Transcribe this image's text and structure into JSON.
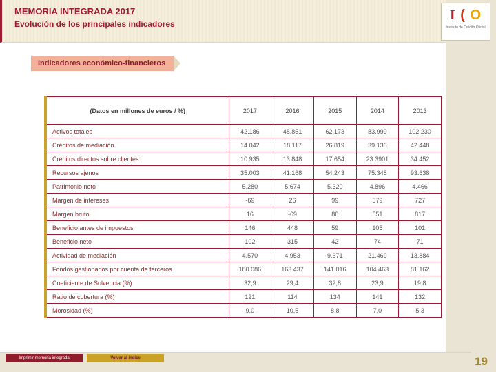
{
  "header": {
    "title": "MEMORIA INTEGRADA 2017",
    "subtitle": "Evolución de los principales indicadores"
  },
  "logo": {
    "glyphs": [
      "I",
      "(",
      "O"
    ],
    "caption": "Instituto de Crédito Oficial"
  },
  "section": {
    "title": "Indicadores económico-financieros"
  },
  "table": {
    "unit_label": "(Datos en millones de euros / %)",
    "years": [
      "2017",
      "2016",
      "2015",
      "2014",
      "2013"
    ],
    "rows": [
      {
        "label": "Activos totales",
        "values": [
          "42.186",
          "48.851",
          "62.173",
          "83.999",
          "102.230"
        ]
      },
      {
        "label": "Créditos de mediación",
        "values": [
          "14.042",
          "18.117",
          "26.819",
          "39.136",
          "42.448"
        ]
      },
      {
        "label": "Créditos directos sobre clientes",
        "values": [
          "10.935",
          "13.848",
          "17.654",
          "23.3901",
          "34.452"
        ]
      },
      {
        "label": "Recursos ajenos",
        "values": [
          "35.003",
          "41.168",
          "54.243",
          "75.348",
          "93.638"
        ]
      },
      {
        "label": "Patrimonio neto",
        "values": [
          "5.280",
          "5.674",
          "5.320",
          "4.896",
          "4.466"
        ]
      },
      {
        "label": "Margen de intereses",
        "values": [
          "-69",
          "26",
          "99",
          "579",
          "727"
        ]
      },
      {
        "label": "Margen bruto",
        "values": [
          "16",
          "-69",
          "86",
          "551",
          "817"
        ]
      },
      {
        "label": "Beneficio antes de impuestos",
        "values": [
          "146",
          "448",
          "59",
          "105",
          "101"
        ]
      },
      {
        "label": "Beneficio neto",
        "values": [
          "102",
          "315",
          "42",
          "74",
          "71"
        ]
      },
      {
        "label": "Actividad de mediación",
        "values": [
          "4.570",
          "4.953",
          "9.671",
          "21.469",
          "13.884"
        ]
      },
      {
        "label": "Fondos gestionados por cuenta de terceros",
        "values": [
          "180.086",
          "163.437",
          "141.016",
          "104.463",
          "81.162"
        ]
      },
      {
        "label": "Coeficiente de Solvencia (%)",
        "values": [
          "32,9",
          "29,4",
          "32,8",
          "23,9",
          "19,8"
        ]
      },
      {
        "label": "Ratio de cobertura (%)",
        "values": [
          "121",
          "114",
          "134",
          "141",
          "132"
        ]
      },
      {
        "label": "Morosidad (%)",
        "values": [
          "9,0",
          "10,5",
          "8,8",
          "7,0",
          "5,3"
        ]
      }
    ]
  },
  "footer": {
    "print_button": "Imprimir memoria integrada",
    "index_button": "Volver al índice",
    "page_number": "19"
  },
  "colors": {
    "brand_red": "#9E1B32",
    "brand_gold": "#C9A227",
    "section_salmon": "#F2B198",
    "page_number_gold": "#A3872C"
  }
}
